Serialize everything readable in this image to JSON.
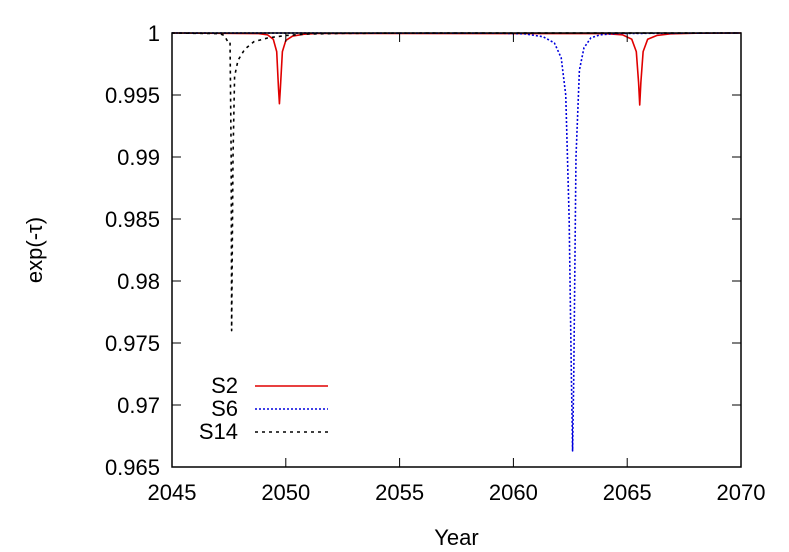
{
  "chart_data": {
    "type": "line",
    "title": "",
    "xlabel": "Year",
    "ylabel": "exp(-τ)",
    "xlim": [
      2045,
      2070
    ],
    "ylim": [
      0.965,
      1
    ],
    "x_ticks": [
      2045,
      2050,
      2055,
      2060,
      2065,
      2070
    ],
    "x_tick_labels": [
      "2045",
      "2050",
      "2055",
      "2060",
      "2065",
      "2070"
    ],
    "y_ticks": [
      0.965,
      0.97,
      0.975,
      0.98,
      0.985,
      0.99,
      0.995,
      1
    ],
    "y_tick_labels": [
      "0.965",
      "0.97",
      "0.975",
      "0.98",
      "0.985",
      "0.99",
      "0.995",
      "1"
    ],
    "grid": false,
    "legend_position": "bottom-left",
    "series": [
      {
        "name": "S2",
        "color": "#e00000",
        "style": "solid",
        "x": [
          2045,
          2048.8,
          2049.2,
          2049.45,
          2049.6,
          2049.68,
          2049.72,
          2049.76,
          2049.85,
          2050.0,
          2050.3,
          2050.8,
          2051.5,
          2064.0,
          2064.8,
          2065.2,
          2065.4,
          2065.5,
          2065.55,
          2065.6,
          2065.7,
          2065.9,
          2066.3,
          2066.9,
          2068,
          2070
        ],
        "y": [
          1,
          0.99995,
          0.99985,
          0.9995,
          0.9985,
          0.9955,
          0.9943,
          0.9955,
          0.9985,
          0.9994,
          0.99975,
          0.9999,
          0.99997,
          0.99995,
          0.99985,
          0.9995,
          0.9985,
          0.996,
          0.9942,
          0.996,
          0.9985,
          0.9995,
          0.9998,
          0.99993,
          0.99998,
          1
        ]
      },
      {
        "name": "S6",
        "color": "#0000dd",
        "style": "dotted",
        "x": [
          2045,
          2059.5,
          2060.5,
          2061.3,
          2061.8,
          2062.1,
          2062.3,
          2062.45,
          2062.55,
          2062.6,
          2062.65,
          2062.75,
          2062.9,
          2063.1,
          2063.4,
          2063.8,
          2064.5,
          2070
        ],
        "y": [
          1,
          0.99998,
          0.99993,
          0.9997,
          0.9992,
          0.998,
          0.995,
          0.985,
          0.972,
          0.9663,
          0.972,
          0.99,
          0.997,
          0.9988,
          0.9996,
          0.99985,
          0.99996,
          1
        ]
      },
      {
        "name": "S14",
        "color": "#000000",
        "style": "dashed",
        "x": [
          2045,
          2047.1,
          2047.3,
          2047.45,
          2047.55,
          2047.6,
          2047.62,
          2047.68,
          2047.75,
          2047.9,
          2048.2,
          2048.6,
          2049.2,
          2050.0,
          2051.0,
          2052.5,
          2055,
          2070
        ],
        "y": [
          1,
          0.99995,
          0.9998,
          0.9993,
          0.9993,
          0.99,
          0.976,
          0.99,
          0.9965,
          0.9978,
          0.9987,
          0.9993,
          0.9996,
          0.9998,
          0.99992,
          0.99997,
          0.99999,
          1
        ]
      }
    ]
  }
}
